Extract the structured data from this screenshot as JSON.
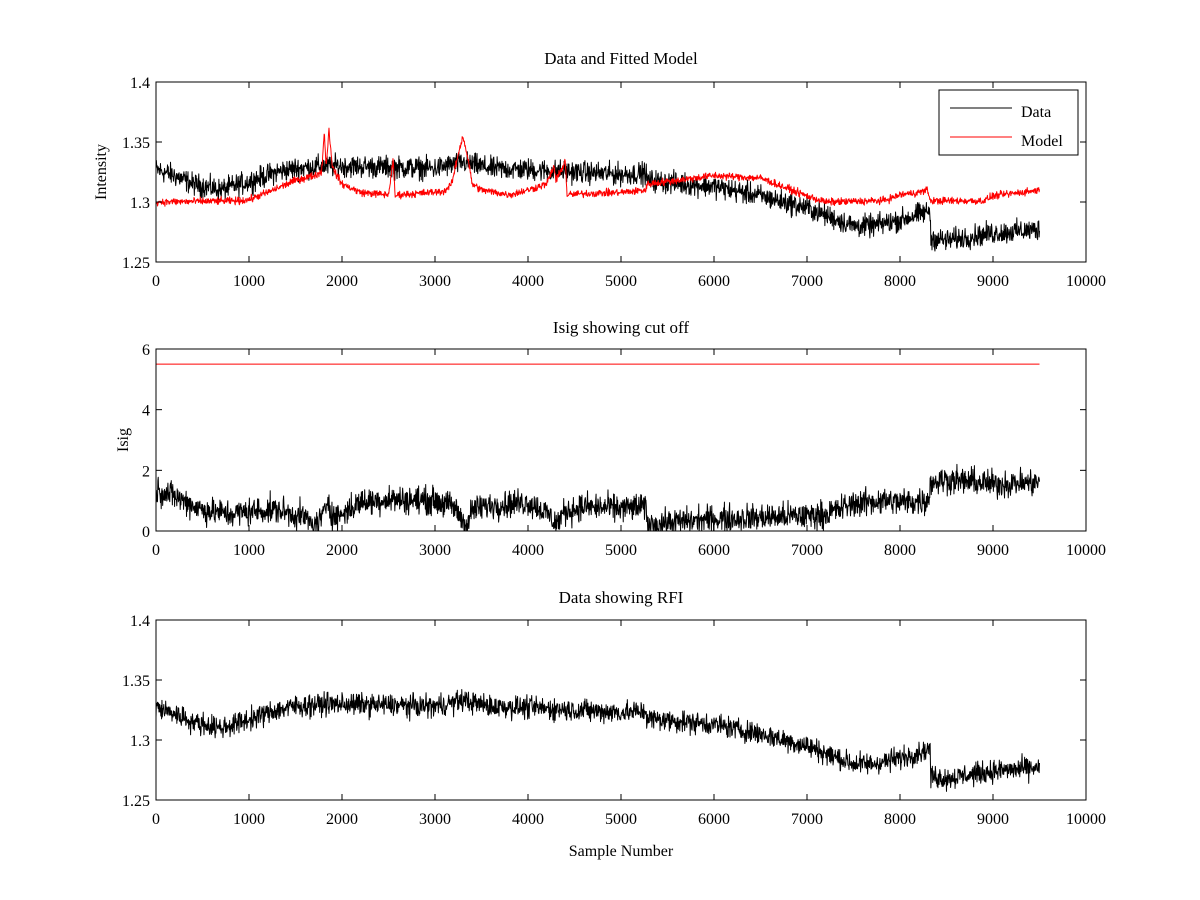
{
  "figure": {
    "background": "#ffffff"
  },
  "chart_data": [
    {
      "type": "line",
      "title": "Data and Fitted Model",
      "xlabel": "",
      "ylabel": "Intensity",
      "xlim": [
        0,
        10000
      ],
      "ylim": [
        1.25,
        1.4
      ],
      "xticks": [
        0,
        1000,
        2000,
        3000,
        4000,
        5000,
        6000,
        7000,
        8000,
        9000,
        10000
      ],
      "yticks": [
        1.25,
        1.3,
        1.35,
        1.4
      ],
      "ytick_labels": [
        "1.25",
        "1.3",
        "1.35",
        "1.4"
      ],
      "legend": {
        "placement": "top-right",
        "entries": [
          "Data",
          "Model"
        ]
      },
      "series": [
        {
          "name": "Data",
          "color": "#000000",
          "noise": 0.0045,
          "x": [
            0,
            200,
            400,
            700,
            1000,
            1300,
            1500,
            1800,
            2000,
            2500,
            3000,
            3300,
            3600,
            4000,
            4500,
            5000,
            5270,
            5280,
            6000,
            6500,
            7000,
            7500,
            7700,
            8000,
            8300,
            8320,
            8330,
            8500,
            9000,
            9500
          ],
          "y": [
            1.327,
            1.322,
            1.315,
            1.31,
            1.317,
            1.325,
            1.328,
            1.33,
            1.33,
            1.329,
            1.328,
            1.333,
            1.328,
            1.327,
            1.325,
            1.323,
            1.324,
            1.318,
            1.313,
            1.305,
            1.295,
            1.28,
            1.28,
            1.285,
            1.292,
            1.295,
            1.27,
            1.268,
            1.274,
            1.277
          ]
        },
        {
          "name": "Model",
          "color": "#ff0000",
          "noise": 0.0015,
          "x": [
            0,
            900,
            1000,
            1200,
            1500,
            1700,
            1780,
            1810,
            1830,
            1860,
            1900,
            2000,
            2200,
            2500,
            2550,
            2570,
            2600,
            2800,
            3100,
            3180,
            3250,
            3300,
            3350,
            3400,
            3500,
            3800,
            4000,
            4200,
            4280,
            4300,
            4350,
            4400,
            4420,
            4440,
            4600,
            5000,
            5270,
            5280,
            6000,
            6500,
            7000,
            7200,
            7800,
            7900,
            8000,
            8200,
            8300,
            8320,
            8330,
            8900,
            9000,
            9200,
            9500
          ],
          "y": [
            1.3,
            1.301,
            1.302,
            1.308,
            1.318,
            1.322,
            1.325,
            1.358,
            1.33,
            1.36,
            1.328,
            1.315,
            1.308,
            1.306,
            1.335,
            1.305,
            1.306,
            1.307,
            1.309,
            1.315,
            1.34,
            1.355,
            1.338,
            1.315,
            1.31,
            1.306,
            1.31,
            1.315,
            1.33,
            1.318,
            1.325,
            1.335,
            1.306,
            1.306,
            1.307,
            1.308,
            1.31,
            1.315,
            1.322,
            1.32,
            1.305,
            1.3,
            1.301,
            1.303,
            1.306,
            1.308,
            1.31,
            1.302,
            1.301,
            1.301,
            1.305,
            1.307,
            1.31
          ]
        }
      ]
    },
    {
      "type": "line",
      "title": "Isig showing cut off",
      "xlabel": "",
      "ylabel": "Isig",
      "xlim": [
        0,
        10000
      ],
      "ylim": [
        0,
        6
      ],
      "xticks": [
        0,
        1000,
        2000,
        3000,
        4000,
        5000,
        6000,
        7000,
        8000,
        9000,
        10000
      ],
      "yticks": [
        0,
        2,
        4,
        6
      ],
      "ytick_labels": [
        "0",
        "2",
        "4",
        "6"
      ],
      "series": [
        {
          "color": "#000000",
          "noise": 0.22,
          "x": [
            0,
            200,
            500,
            800,
            1000,
            1300,
            1600,
            1700,
            1800,
            1850,
            1900,
            2000,
            2200,
            2500,
            3000,
            3200,
            3300,
            3350,
            3400,
            3600,
            4000,
            4200,
            4300,
            4400,
            4600,
            5000,
            5270,
            5280,
            5600,
            6000,
            6500,
            7000,
            7200,
            7500,
            7800,
            8000,
            8300,
            8320,
            8330,
            8500,
            9000,
            9500
          ],
          "y": [
            1.35,
            1.15,
            0.7,
            0.55,
            0.65,
            0.7,
            0.45,
            0.15,
            0.5,
            1.1,
            0.45,
            0.55,
            0.95,
            1.05,
            1.0,
            0.8,
            0.35,
            0.2,
            0.7,
            0.85,
            0.95,
            0.6,
            0.25,
            0.65,
            0.8,
            0.75,
            0.8,
            0.2,
            0.3,
            0.4,
            0.45,
            0.5,
            0.55,
            0.9,
            1.0,
            0.95,
            1.0,
            1.35,
            1.6,
            1.7,
            1.55,
            1.6
          ]
        },
        {
          "color": "#ff0000",
          "noise": 0,
          "x": [
            0,
            9500
          ],
          "y": [
            5.5,
            5.5
          ]
        }
      ]
    },
    {
      "type": "line",
      "title": "Data showing RFI",
      "xlabel": "Sample Number",
      "ylabel": "",
      "xlim": [
        0,
        10000
      ],
      "ylim": [
        1.25,
        1.4
      ],
      "xticks": [
        0,
        1000,
        2000,
        3000,
        4000,
        5000,
        6000,
        7000,
        8000,
        9000,
        10000
      ],
      "yticks": [
        1.25,
        1.3,
        1.35,
        1.4
      ],
      "ytick_labels": [
        "1.25",
        "1.3",
        "1.35",
        "1.4"
      ],
      "series": [
        {
          "color": "#000000",
          "noise": 0.0045,
          "x": [
            0,
            200,
            400,
            700,
            1000,
            1300,
            1500,
            1800,
            2000,
            2500,
            3000,
            3300,
            3600,
            4000,
            4500,
            5000,
            5270,
            5280,
            6000,
            6500,
            7000,
            7500,
            7700,
            8000,
            8300,
            8320,
            8330,
            8500,
            9000,
            9500
          ],
          "y": [
            1.327,
            1.322,
            1.315,
            1.31,
            1.317,
            1.325,
            1.328,
            1.33,
            1.33,
            1.329,
            1.328,
            1.333,
            1.328,
            1.327,
            1.325,
            1.323,
            1.324,
            1.318,
            1.313,
            1.305,
            1.295,
            1.28,
            1.28,
            1.285,
            1.292,
            1.295,
            1.27,
            1.268,
            1.274,
            1.277
          ]
        }
      ]
    }
  ]
}
